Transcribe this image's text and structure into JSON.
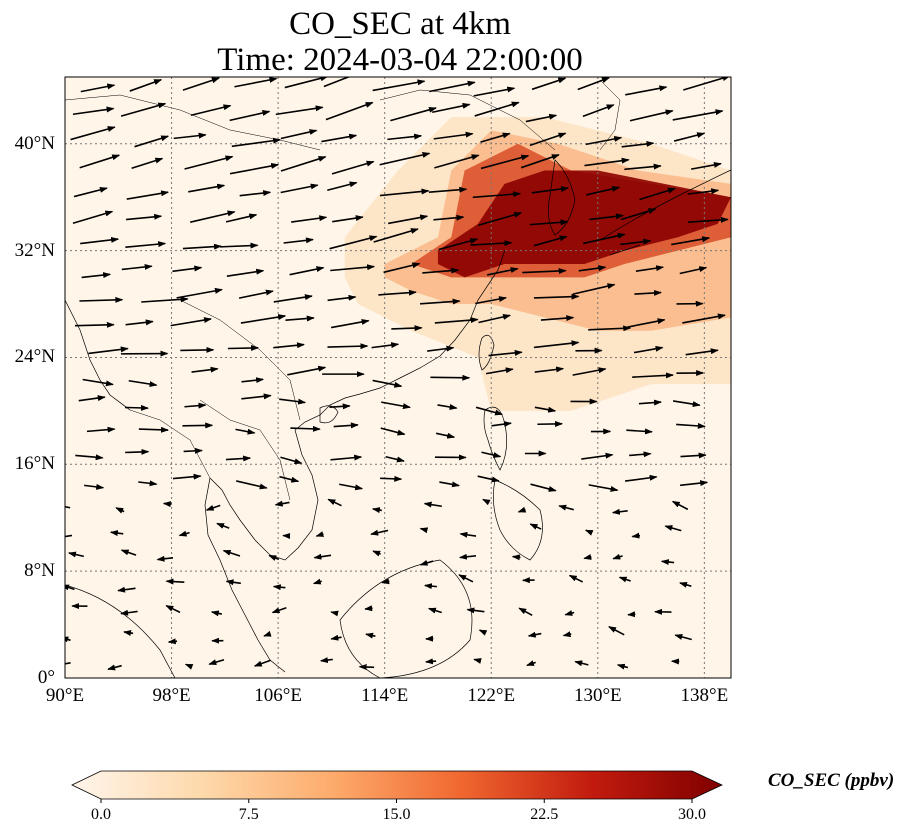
{
  "title": {
    "line1": "CO_SEC at 4km",
    "line2": "Time: 2024-03-04 22:00:00"
  },
  "map": {
    "projection": "PlateCarree",
    "lon_range": [
      90,
      140
    ],
    "lat_range": [
      0,
      45
    ],
    "gridlines": "dotted",
    "lat_ticks": [
      {
        "value": 0,
        "label": "0°"
      },
      {
        "value": 8,
        "label": "8°N"
      },
      {
        "value": 16,
        "label": "16°N"
      },
      {
        "value": 24,
        "label": "24°N"
      },
      {
        "value": 32,
        "label": "32°N"
      },
      {
        "value": 40,
        "label": "40°N"
      }
    ],
    "lon_ticks": [
      {
        "value": 90,
        "label": "90°E"
      },
      {
        "value": 98,
        "label": "98°E"
      },
      {
        "value": 106,
        "label": "106°E"
      },
      {
        "value": 114,
        "label": "114°E"
      },
      {
        "value": 122,
        "label": "122°E"
      },
      {
        "value": 130,
        "label": "130°E"
      },
      {
        "value": 138,
        "label": "138°E"
      }
    ],
    "background_color": "#fff6e9",
    "plume_regions": [
      {
        "level": "low",
        "value": 6,
        "color": "#fde2c2",
        "polygon": [
          [
            111,
            33
          ],
          [
            115,
            38
          ],
          [
            119,
            42
          ],
          [
            126,
            42
          ],
          [
            134,
            40
          ],
          [
            140,
            38
          ],
          [
            140,
            22
          ],
          [
            134,
            22
          ],
          [
            128,
            20
          ],
          [
            122,
            20
          ],
          [
            121,
            24
          ],
          [
            116,
            26
          ],
          [
            112,
            28
          ],
          [
            111,
            30
          ]
        ]
      },
      {
        "level": "medium",
        "value": 12,
        "color": "#f9b98a",
        "polygon": [
          [
            114,
            31
          ],
          [
            118,
            33
          ],
          [
            119,
            38
          ],
          [
            122,
            41
          ],
          [
            127,
            40
          ],
          [
            133,
            38
          ],
          [
            140,
            37
          ],
          [
            140,
            27
          ],
          [
            134,
            26
          ],
          [
            130,
            26
          ],
          [
            126,
            27
          ],
          [
            122,
            28
          ],
          [
            119,
            28
          ],
          [
            116,
            29
          ],
          [
            114,
            30
          ]
        ]
      },
      {
        "level": "high",
        "value": 20,
        "color": "#d9532e",
        "polygon": [
          [
            116,
            31
          ],
          [
            119,
            33
          ],
          [
            120,
            38
          ],
          [
            124,
            40
          ],
          [
            128,
            38
          ],
          [
            134,
            37
          ],
          [
            140,
            36
          ],
          [
            140,
            33
          ],
          [
            136,
            32
          ],
          [
            132,
            31
          ],
          [
            129,
            30
          ],
          [
            126,
            30
          ],
          [
            122,
            30
          ],
          [
            119,
            30
          ]
        ]
      },
      {
        "level": "very-high",
        "value": 30,
        "color": "#8b0000",
        "polygon": [
          [
            118,
            32
          ],
          [
            121,
            34
          ],
          [
            123,
            37
          ],
          [
            126,
            38
          ],
          [
            130,
            38
          ],
          [
            135,
            37
          ],
          [
            140,
            36
          ],
          [
            139,
            34
          ],
          [
            136,
            33
          ],
          [
            132,
            32
          ],
          [
            129,
            31
          ],
          [
            126,
            31
          ],
          [
            123,
            31
          ],
          [
            120,
            30
          ],
          [
            118,
            31
          ]
        ]
      }
    ]
  },
  "colorbar": {
    "label": "CO_SEC (ppbv)",
    "min": 0.0,
    "max": 30.0,
    "extend": "both",
    "ticks": [
      "0.0",
      "7.5",
      "15.0",
      "22.5",
      "30.0"
    ],
    "colors": [
      "#fff5eb",
      "#fdd9ab",
      "#fdab6c",
      "#f0672f",
      "#c21b0e",
      "#7f0000"
    ]
  }
}
